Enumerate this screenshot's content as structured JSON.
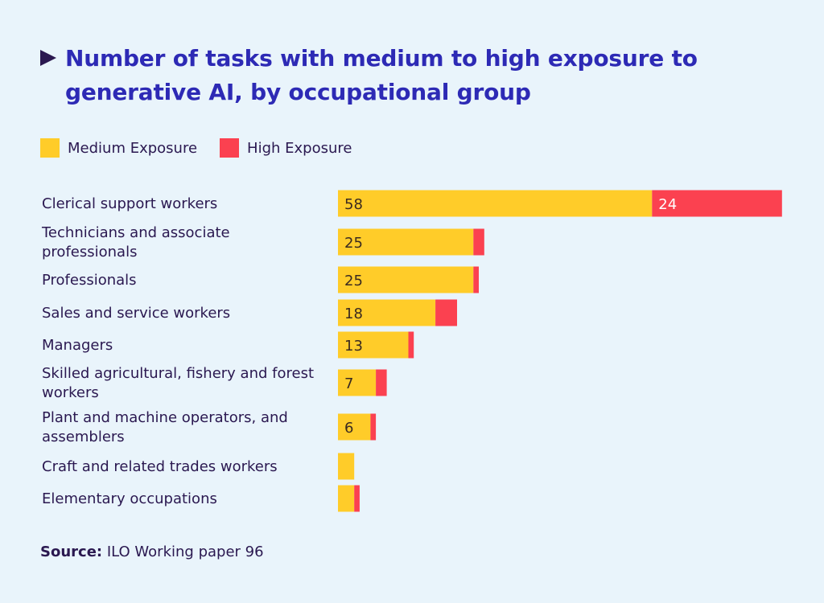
{
  "chart_data": {
    "type": "bar",
    "orientation": "horizontal",
    "stacked": true,
    "title": "Number of tasks with medium to high exposure to generative AI, by occupational group",
    "categories": [
      "Clerical support workers",
      "Technicians and associate professionals",
      "Professionals",
      "Sales and service workers",
      "Managers",
      "Skilled agricultural, fishery and forest workers",
      "Plant and machine operators, and assemblers",
      "Craft and related trades workers",
      "Elementary occupations"
    ],
    "series": [
      {
        "name": "Medium Exposure",
        "color": "#ffcc29",
        "values": [
          58,
          25,
          25,
          18,
          13,
          7,
          6,
          3,
          3
        ],
        "labels": [
          "58",
          "25",
          "25",
          "18",
          "13",
          "7",
          "6",
          "",
          ""
        ]
      },
      {
        "name": "High Exposure",
        "color": "#fb4150",
        "values": [
          24,
          2,
          1,
          4,
          1,
          2,
          1,
          0,
          1
        ],
        "labels": [
          "24",
          "",
          "",
          "",
          "",
          "",
          "",
          "",
          ""
        ]
      }
    ],
    "legend_position": "top-left",
    "grid": false
  },
  "source": {
    "label": "Source:",
    "text": "ILO Working paper 96"
  }
}
